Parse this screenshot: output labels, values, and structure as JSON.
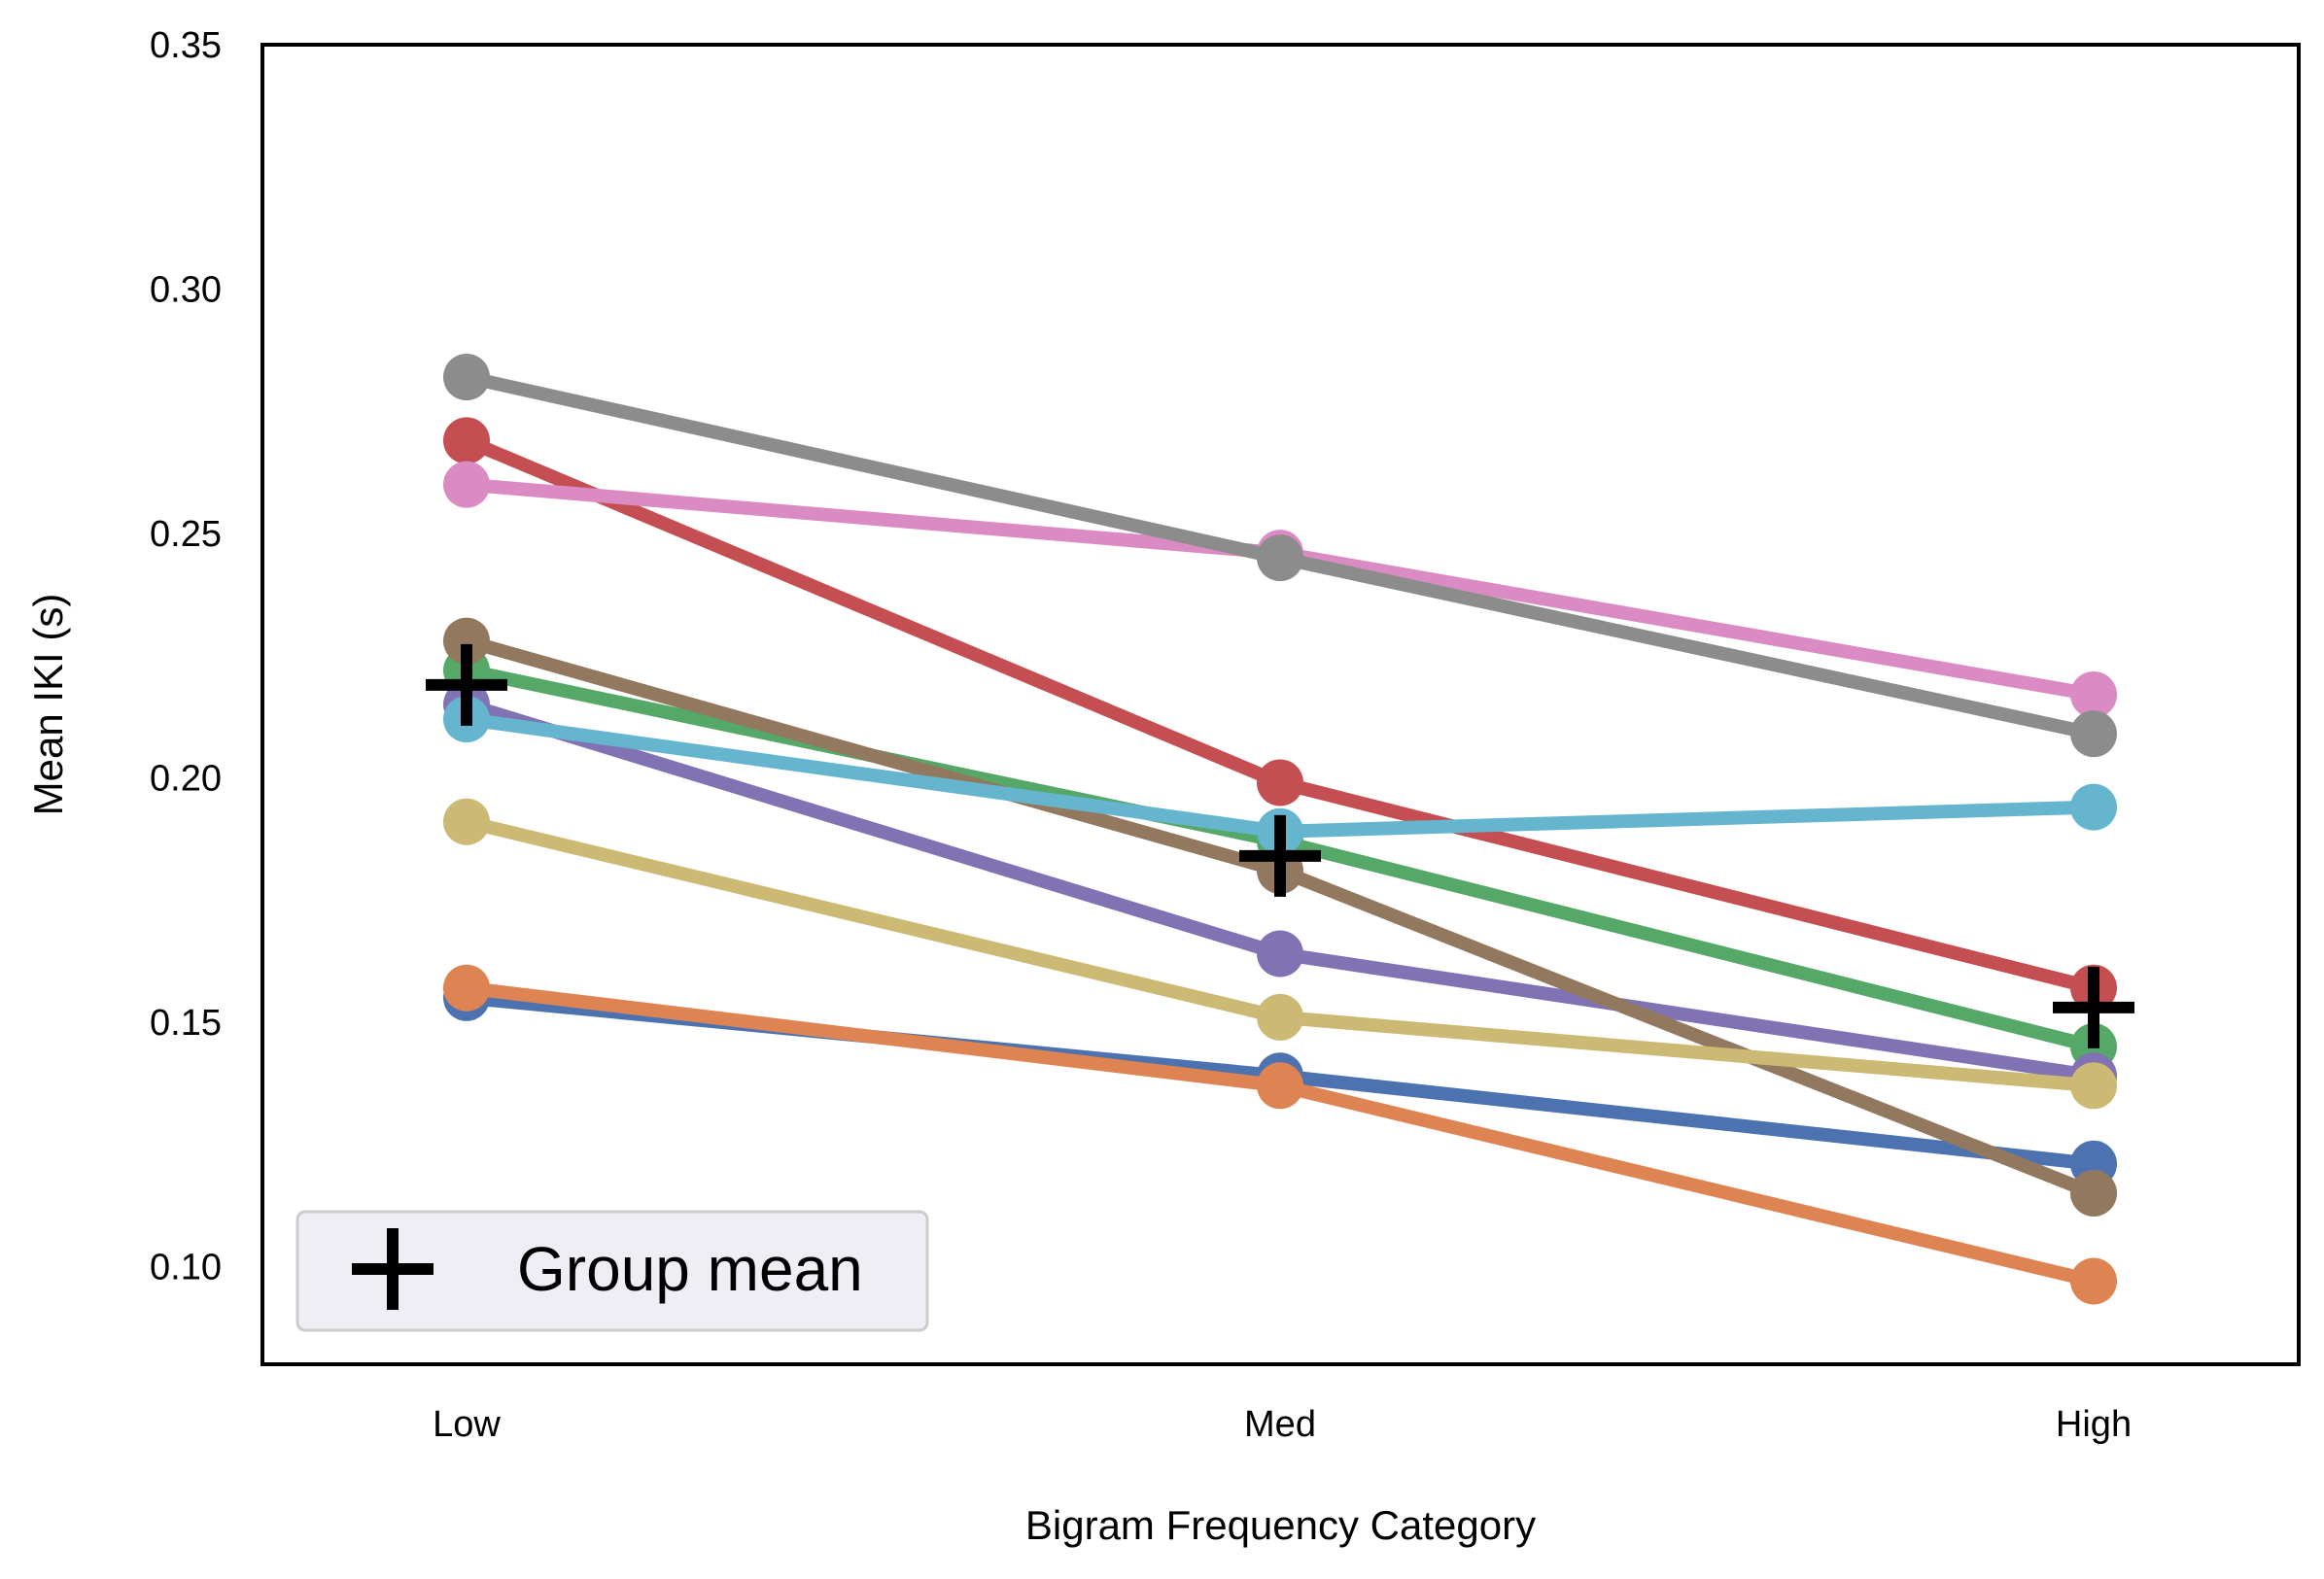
{
  "chart_data": {
    "type": "line",
    "title": "",
    "xlabel": "Bigram Frequency Category",
    "ylabel": "Mean IKI (s)",
    "categories": [
      "Low",
      "Med",
      "High"
    ],
    "ylim": [
      0.08,
      0.35
    ],
    "yticks": [
      "0.10",
      "0.15",
      "0.20",
      "0.25",
      "0.30",
      "0.35"
    ],
    "grid": false,
    "legend": {
      "placement": "bottom-left",
      "label": "Group mean"
    },
    "series": [
      {
        "color": "#4c72b0",
        "values": [
          0.155,
          0.139,
          0.121
        ]
      },
      {
        "color": "#dd8452",
        "values": [
          0.157,
          0.137,
          0.097
        ]
      },
      {
        "color": "#55a868",
        "values": [
          0.222,
          0.187,
          0.145
        ]
      },
      {
        "color": "#c44e52",
        "values": [
          0.269,
          0.199,
          0.157
        ]
      },
      {
        "color": "#8172b3",
        "values": [
          0.215,
          0.164,
          0.139
        ]
      },
      {
        "color": "#937860",
        "values": [
          0.228,
          0.181,
          0.115
        ]
      },
      {
        "color": "#da8bc3",
        "values": [
          0.26,
          0.246,
          0.217
        ]
      },
      {
        "color": "#8c8c8c",
        "values": [
          0.282,
          0.245,
          0.209
        ]
      },
      {
        "color": "#ccb974",
        "values": [
          0.191,
          0.151,
          0.137
        ]
      },
      {
        "color": "#64b5cd",
        "values": [
          0.212,
          0.189,
          0.194
        ]
      }
    ],
    "group_mean": {
      "color": "#000000",
      "values": [
        0.219,
        0.184,
        0.153
      ]
    }
  }
}
